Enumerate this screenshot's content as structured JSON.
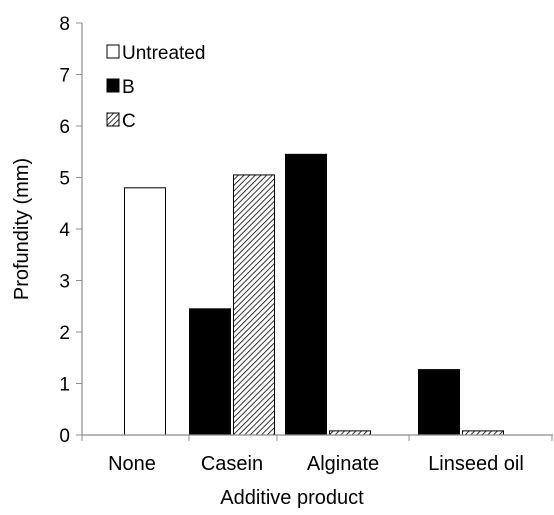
{
  "chart_data": {
    "type": "bar",
    "xlabel": "Additive product",
    "ylabel": "Profundity (mm)",
    "ylim": [
      0,
      8
    ],
    "yticks": [
      0,
      1,
      2,
      3,
      4,
      5,
      6,
      7,
      8
    ],
    "grid": false,
    "legend_position": "top-left",
    "categories": [
      "None",
      "Casein",
      "Alginate",
      "Linseed oil"
    ],
    "series": [
      {
        "name": "Untreated",
        "fill": "white",
        "values": [
          4.8,
          null,
          null,
          null
        ]
      },
      {
        "name": "B",
        "fill": "black",
        "values": [
          null,
          2.45,
          5.45,
          1.27
        ]
      },
      {
        "name": "C",
        "fill": "hatched",
        "values": [
          null,
          5.05,
          0.08,
          0.08
        ]
      }
    ]
  },
  "colors": {
    "axis": "#8c8c8c",
    "bar_outline": "#000000",
    "black_fill": "#000000",
    "white_fill": "#ffffff"
  }
}
